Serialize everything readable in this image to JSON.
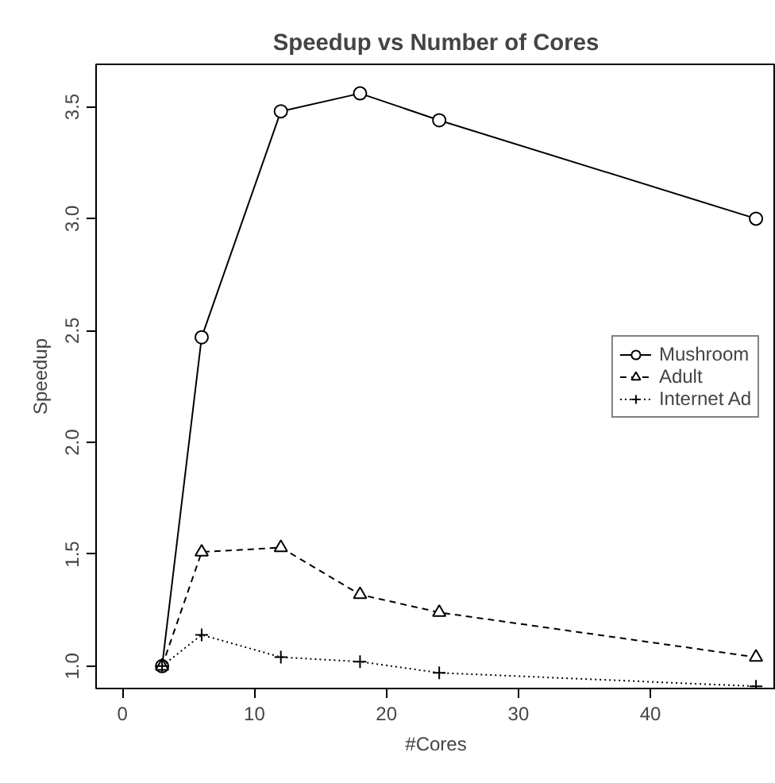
{
  "chart_data": {
    "type": "line",
    "title": "Speedup vs Number of Cores",
    "xlabel": "#Cores",
    "ylabel": "Speedup",
    "x": [
      3,
      6,
      12,
      18,
      24,
      48
    ],
    "series": [
      {
        "name": "Mushroom",
        "color": "#000000",
        "marker": "circle",
        "line_style": "solid",
        "values": [
          1.0,
          2.47,
          3.48,
          3.56,
          3.44,
          3.0
        ]
      },
      {
        "name": "Adult",
        "color": "#000000",
        "marker": "triangle",
        "line_style": "dashed",
        "values": [
          1.0,
          1.51,
          1.53,
          1.32,
          1.24,
          1.04
        ]
      },
      {
        "name": "Internet Ad",
        "color": "#000000",
        "marker": "cross",
        "line_style": "dotted",
        "values": [
          1.0,
          1.14,
          1.04,
          1.02,
          0.97,
          0.91
        ]
      }
    ],
    "xlim": [
      -2,
      49.5
    ],
    "ylim": [
      0.9,
      3.69
    ],
    "xticks": [
      0,
      10,
      20,
      30,
      40
    ],
    "yticks": [
      {
        "value": 1.0,
        "label": "1.0"
      },
      {
        "value": 1.5,
        "label": "1.5"
      },
      {
        "value": 2.0,
        "label": "2.0"
      },
      {
        "value": 2.5,
        "label": "2.5"
      },
      {
        "value": 3.0,
        "label": "3.0"
      },
      {
        "value": 3.5,
        "label": "3.5"
      }
    ],
    "grid": false,
    "legend": "right"
  }
}
